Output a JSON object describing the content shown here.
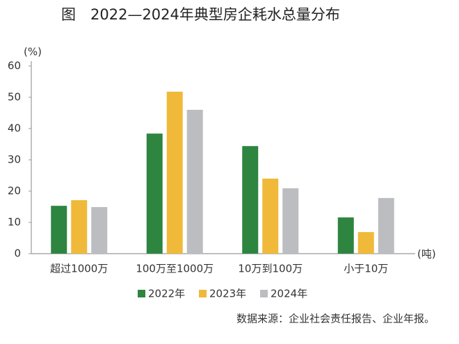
{
  "chart_data": {
    "type": "bar",
    "title": "图　2022—2024年典型房企耗水总量分布",
    "y_label": "(%)",
    "x_label": "(吨)",
    "categories": [
      "超过1000万",
      "100万至1000万",
      "10万到100万",
      "小于10万"
    ],
    "series": [
      {
        "name": "2022年",
        "color": "#2e8540",
        "values": [
          15.3,
          38.4,
          34.4,
          11.6
        ]
      },
      {
        "name": "2023年",
        "color": "#f0b93a",
        "values": [
          17.1,
          51.8,
          24.0,
          6.9
        ]
      },
      {
        "name": "2024年",
        "color": "#bcbdc0",
        "values": [
          14.9,
          46.0,
          20.9,
          17.8
        ]
      }
    ],
    "ylim": [
      0,
      60
    ],
    "yticks": [
      0,
      10,
      20,
      30,
      40,
      50,
      60
    ],
    "grid": false,
    "source": "数据来源：企业社会责任报告、企业年报。"
  }
}
